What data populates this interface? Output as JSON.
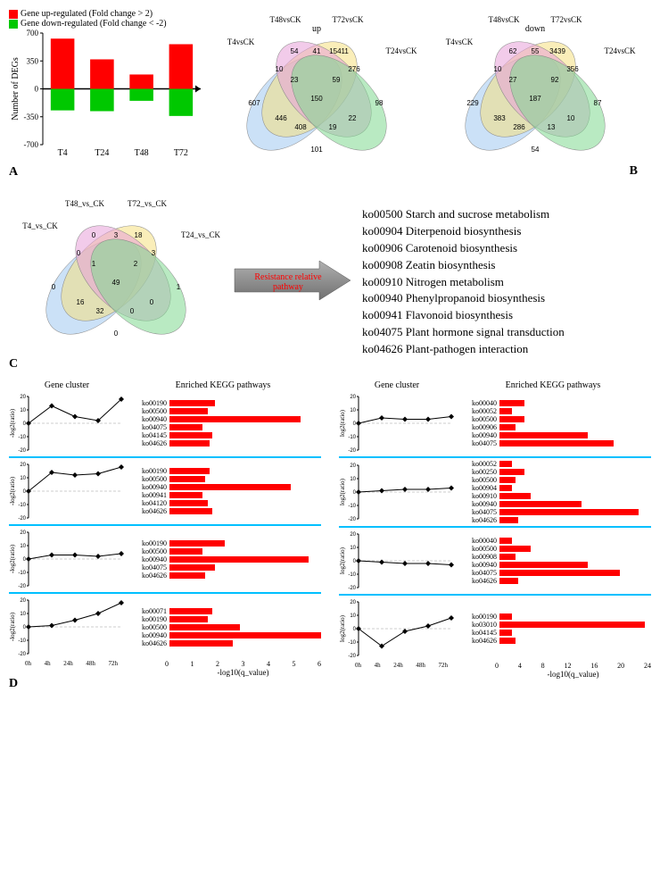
{
  "colors": {
    "red": "#ff0000",
    "green": "#00c800",
    "venn_blue": "#a0c8f0",
    "venn_yellow": "#f5e080",
    "venn_pink": "#e8a0d8",
    "venn_green": "#80d890",
    "arrow_grey": "#909090",
    "divider": "#00c0ff"
  },
  "panelA": {
    "legend_up": "Gene up-regulated (Fold change > 2)",
    "legend_down": "Gene down-regulated (Fold change < -2)",
    "ylabel": "Number of DEGs",
    "ylim": [
      -700,
      700
    ],
    "yticks": [
      -700,
      -350,
      0,
      350,
      700
    ],
    "categories": [
      "T4",
      "T24",
      "T48",
      "T72"
    ],
    "up_values": [
      630,
      370,
      180,
      560
    ],
    "down_values": [
      -270,
      -280,
      -150,
      -340
    ]
  },
  "panelB": {
    "up": {
      "title": "up",
      "labels": [
        "T4vsCK",
        "T48vsCK",
        "T72vsCK",
        "T24vsCK"
      ],
      "regions": {
        "a": 607,
        "b": 54,
        "c": 15411,
        "d": 98,
        "ab": 10,
        "bc": 41,
        "cd": 276,
        "ad": 101,
        "ac": 446,
        "bd": 22,
        "abc": 23,
        "bcd": 59,
        "acd": 408,
        "abd": 19,
        "abcd": 150
      }
    },
    "down": {
      "title": "down",
      "labels": [
        "T4vsCK",
        "T48vsCK",
        "T72vsCK",
        "T24vsCK"
      ],
      "regions": {
        "a": 229,
        "b": 62,
        "c": 3439,
        "d": 87,
        "ab": 10,
        "bc": 55,
        "cd": 356,
        "ad": 54,
        "ac": 383,
        "bd": 10,
        "abc": 27,
        "bcd": 92,
        "acd": 286,
        "abd": 13,
        "abcd": 187
      }
    }
  },
  "panelC": {
    "labels": [
      "T4_vs_CK",
      "T48_vs_CK",
      "T72_vs_CK",
      "T24_vs_CK"
    ],
    "regions": {
      "a": 0,
      "b": 0,
      "c": 18,
      "d": 1,
      "ab": 0,
      "bc": 3,
      "cd": 3,
      "ad": 0,
      "ac": 16,
      "bd": 0,
      "abc": 1,
      "bcd": 2,
      "acd": 32,
      "abd": 0,
      "abcd": 49
    },
    "arrow_text": "Resistance relative pathway",
    "pathways": [
      "ko00500 Starch and sucrose metabolism",
      "ko00904 Diterpenoid biosynthesis",
      "ko00906 Carotenoid biosynthesis",
      "ko00908 Zeatin biosynthesis",
      "ko00910 Nitrogen metabolism",
      "ko00940 Phenylpropanoid biosynthesis",
      "ko00941 Flavonoid biosynthesis",
      "ko04075 Plant hormone signal transduction",
      "ko04626 Plant-pathogen interaction"
    ]
  },
  "panelD": {
    "header_left": "Gene cluster",
    "header_right": "Enriched KEGG pathways",
    "ylabel": "log2(ratio)",
    "ylabel_neg": "-log2(ratio)",
    "ylim": [
      -20,
      20
    ],
    "yticks": [
      -20,
      -10,
      0,
      10,
      20
    ],
    "xticks": [
      "0h",
      "4h",
      "24h",
      "48h",
      "72h"
    ],
    "xlabel": "-log10(q_value)",
    "left_xmax": 6,
    "right_xmax": 24,
    "left_rows": [
      {
        "line": [
          0,
          13,
          5,
          2,
          18
        ],
        "bars": [
          {
            "k": "ko00190",
            "v": 1.8
          },
          {
            "k": "ko00500",
            "v": 1.5
          },
          {
            "k": "ko00940",
            "v": 5.2
          },
          {
            "k": "ko04075",
            "v": 1.3
          },
          {
            "k": "ko04145",
            "v": 1.7
          },
          {
            "k": "ko04626",
            "v": 1.6
          }
        ]
      },
      {
        "line": [
          0,
          14,
          12,
          13,
          18
        ],
        "bars": [
          {
            "k": "ko00190",
            "v": 1.6
          },
          {
            "k": "ko00500",
            "v": 1.4
          },
          {
            "k": "ko00940",
            "v": 4.8
          },
          {
            "k": "ko00941",
            "v": 1.3
          },
          {
            "k": "ko04120",
            "v": 1.5
          },
          {
            "k": "ko04626",
            "v": 1.7
          }
        ]
      },
      {
        "line": [
          0,
          3,
          3,
          2,
          4
        ],
        "bars": [
          {
            "k": "ko00190",
            "v": 2.2
          },
          {
            "k": "ko00500",
            "v": 1.3
          },
          {
            "k": "ko00940",
            "v": 5.5
          },
          {
            "k": "ko04075",
            "v": 1.8
          },
          {
            "k": "ko04626",
            "v": 1.4
          }
        ]
      },
      {
        "line": [
          0,
          1,
          5,
          10,
          18
        ],
        "bars": [
          {
            "k": "ko00071",
            "v": 1.7
          },
          {
            "k": "ko00190",
            "v": 1.5
          },
          {
            "k": "ko00500",
            "v": 2.8
          },
          {
            "k": "ko00940",
            "v": 6.0
          },
          {
            "k": "ko04626",
            "v": 2.5
          }
        ]
      }
    ],
    "right_rows": [
      {
        "line": [
          0,
          4,
          3,
          3,
          5
        ],
        "bars": [
          {
            "k": "ko00040",
            "v": 4
          },
          {
            "k": "ko00052",
            "v": 2
          },
          {
            "k": "ko00500",
            "v": 4
          },
          {
            "k": "ko00906",
            "v": 2.5
          },
          {
            "k": "ko00940",
            "v": 14
          },
          {
            "k": "ko04075",
            "v": 18
          }
        ]
      },
      {
        "line": [
          0,
          1,
          2,
          2,
          3
        ],
        "bars": [
          {
            "k": "ko00052",
            "v": 2
          },
          {
            "k": "ko00250",
            "v": 4
          },
          {
            "k": "ko00500",
            "v": 2.5
          },
          {
            "k": "ko00904",
            "v": 2
          },
          {
            "k": "ko00910",
            "v": 5
          },
          {
            "k": "ko00940",
            "v": 13
          },
          {
            "k": "ko04075",
            "v": 22
          },
          {
            "k": "ko04626",
            "v": 3
          }
        ]
      },
      {
        "line": [
          0,
          -1,
          -2,
          -2,
          -3
        ],
        "bars": [
          {
            "k": "ko00040",
            "v": 2
          },
          {
            "k": "ko00500",
            "v": 5
          },
          {
            "k": "ko00908",
            "v": 2.5
          },
          {
            "k": "ko00940",
            "v": 14
          },
          {
            "k": "ko04075",
            "v": 19
          },
          {
            "k": "ko04626",
            "v": 3
          }
        ]
      },
      {
        "line": [
          0,
          -13,
          -2,
          2,
          8
        ],
        "bars": [
          {
            "k": "ko00190",
            "v": 2
          },
          {
            "k": "ko03010",
            "v": 23
          },
          {
            "k": "ko04145",
            "v": 2
          },
          {
            "k": "ko04626",
            "v": 2.5
          }
        ]
      }
    ]
  },
  "labels": {
    "A": "A",
    "B": "B",
    "C": "C",
    "D": "D"
  }
}
